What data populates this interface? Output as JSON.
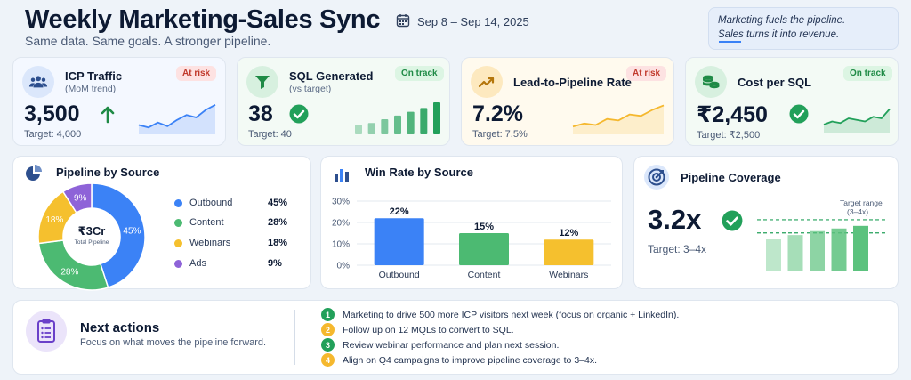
{
  "header": {
    "title": "Weekly Marketing-Sales Sync",
    "subtitle": "Same data. Same goals. A stronger pipeline.",
    "date_range": "Sep 8 – Sep 14, 2025",
    "quote_line1": "Marketing fuels the pipeline.",
    "quote_line2": "Sales turns it into revenue."
  },
  "kpis": [
    {
      "title": "ICP Traffic",
      "subtitle": "(MoM trend)",
      "badge": "At risk",
      "status": "risk",
      "value": "3,500",
      "target": "Target: 4,000",
      "icon": "users-icon",
      "indicator": "arrow-up-icon",
      "color": "#3b82f6",
      "spark": [
        22,
        20,
        24,
        21,
        26,
        30,
        28,
        34,
        38
      ]
    },
    {
      "title": "SQL Generated",
      "subtitle": "(vs target)",
      "badge": "On track",
      "status": "ok",
      "value": "38",
      "target": "Target: 40",
      "icon": "filter-icon",
      "indicator": "check-circle-icon",
      "color": "#22a05a",
      "bars": [
        10,
        12,
        16,
        20,
        24,
        28,
        34
      ]
    },
    {
      "title": "Lead-to-Pipeline Rate",
      "subtitle": "",
      "badge": "At risk",
      "status": "risk",
      "value": "7.2%",
      "target": "Target: 7.5%",
      "icon": "trend-up-icon",
      "indicator": "",
      "color": "#f5b82e",
      "spark": [
        18,
        20,
        19,
        23,
        22,
        26,
        25,
        29,
        32
      ]
    },
    {
      "title": "Cost per SQL",
      "subtitle": "",
      "badge": "On track",
      "status": "ok",
      "value": "₹2,450",
      "target": "Target: ₹2,500",
      "icon": "coins-icon",
      "indicator": "check-circle-icon",
      "color": "#22a05a",
      "spark": [
        14,
        16,
        15,
        18,
        17,
        16,
        19,
        18,
        24
      ]
    }
  ],
  "pipeline": {
    "title": "Pipeline by Source",
    "center_value": "₹3Cr",
    "center_label": "Total Pipeline",
    "sources": [
      {
        "name": "Outbound",
        "pct": 45,
        "label": "45%",
        "color": "#3b82f6"
      },
      {
        "name": "Content",
        "pct": 28,
        "label": "28%",
        "color": "#4cba72"
      },
      {
        "name": "Webinars",
        "pct": 18,
        "label": "18%",
        "color": "#f5c02e"
      },
      {
        "name": "Ads",
        "pct": 9,
        "label": "9%",
        "color": "#8e63d8"
      }
    ]
  },
  "chart_data": {
    "type": "bar",
    "title": "Win Rate by Source",
    "categories": [
      "Outbound",
      "Content",
      "Webinars"
    ],
    "values": [
      22,
      15,
      12
    ],
    "value_labels": [
      "22%",
      "15%",
      "12%"
    ],
    "colors": [
      "#3b82f6",
      "#4cba72",
      "#f5c02e"
    ],
    "yticks": [
      "0%",
      "10%",
      "20%",
      "30%"
    ],
    "ylim": [
      0,
      30
    ],
    "grid": true
  },
  "coverage": {
    "title": "Pipeline Coverage",
    "value": "3.2x",
    "target": "Target: 3–4x",
    "range_label_1": "Target range",
    "range_label_2": "(3–4x)",
    "bars": [
      2.4,
      2.7,
      3.0,
      3.2,
      3.4
    ],
    "target_low": 3,
    "target_high": 4
  },
  "actions": {
    "title": "Next actions",
    "subtitle": "Focus on what moves the pipeline forward.",
    "items": [
      {
        "num": "1",
        "text": "Marketing to drive 500 more ICP visitors next week (focus on organic + LinkedIn).",
        "color": "#22a05a"
      },
      {
        "num": "2",
        "text": "Follow up on 12 MQLs to convert to SQL.",
        "color": "#f5b82e"
      },
      {
        "num": "3",
        "text": "Review webinar performance and plan next session.",
        "color": "#22a05a"
      },
      {
        "num": "4",
        "text": "Align on Q4 campaigns to improve pipeline coverage to 3–4x.",
        "color": "#f5b82e"
      }
    ]
  }
}
